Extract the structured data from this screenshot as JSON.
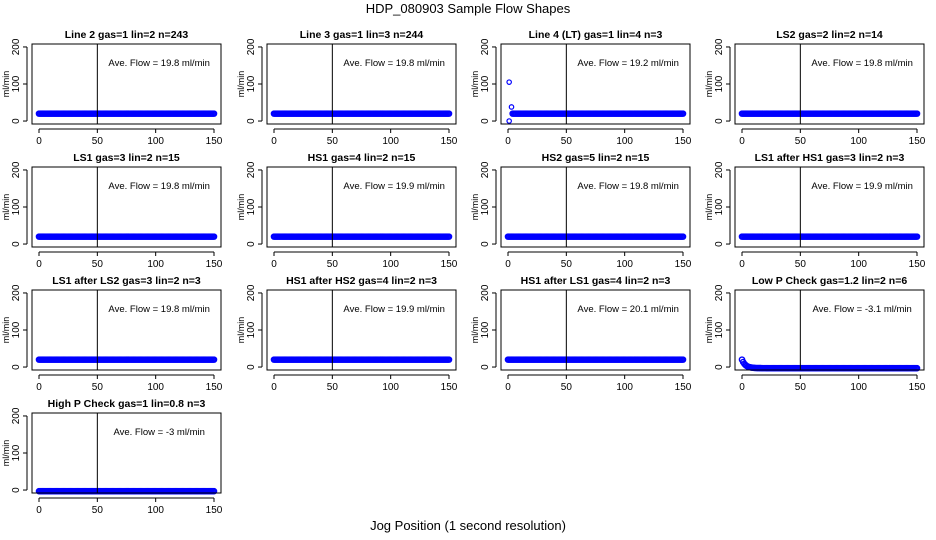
{
  "figure": {
    "title": "HDP_080903  Sample Flow Shapes",
    "xlabel": "Jog Position (1 second resolution)"
  },
  "chart_data": [
    {
      "type": "scatter",
      "title": "Line 2 gas=1 lin=2 n=243",
      "ylabel": "ml/min",
      "annotation": "Ave. Flow =  19.8  ml/min",
      "xlim": [
        0,
        150
      ],
      "ylim": [
        0,
        200
      ],
      "xticks": [
        0,
        50,
        100,
        150
      ],
      "yticks": [
        0,
        100,
        200
      ],
      "vline": 50,
      "series": [
        {
          "shape": "flat",
          "level": 20
        }
      ]
    },
    {
      "type": "scatter",
      "title": "Line 3 gas=1 lin=3 n=244",
      "ylabel": "ml/min",
      "annotation": "Ave. Flow =  19.8  ml/min",
      "xlim": [
        0,
        150
      ],
      "ylim": [
        0,
        200
      ],
      "xticks": [
        0,
        50,
        100,
        150
      ],
      "yticks": [
        0,
        100,
        200
      ],
      "vline": 50,
      "series": [
        {
          "shape": "flat",
          "level": 20
        }
      ]
    },
    {
      "type": "scatter",
      "title": "Line 4 (LT) gas=1 lin=4 n=3",
      "ylabel": "ml/min",
      "annotation": "Ave. Flow =  19.2  ml/min",
      "xlim": [
        0,
        150
      ],
      "ylim": [
        0,
        200
      ],
      "xticks": [
        0,
        50,
        100,
        150
      ],
      "yticks": [
        0,
        100,
        200
      ],
      "vline": 50,
      "series": [
        {
          "shape": "flat",
          "level": 20,
          "outliers": [
            [
              1,
              105
            ],
            [
              3,
              38
            ],
            [
              1,
              0
            ]
          ]
        }
      ]
    },
    {
      "type": "scatter",
      "title": "LS2 gas=2 lin=2 n=14",
      "ylabel": "ml/min",
      "annotation": "Ave. Flow =  19.8  ml/min",
      "xlim": [
        0,
        150
      ],
      "ylim": [
        0,
        200
      ],
      "xticks": [
        0,
        50,
        100,
        150
      ],
      "yticks": [
        0,
        100,
        200
      ],
      "vline": 50,
      "series": [
        {
          "shape": "flat",
          "level": 20
        }
      ]
    },
    {
      "type": "scatter",
      "title": "LS1 gas=3 lin=2 n=15",
      "ylabel": "ml/min",
      "annotation": "Ave. Flow =  19.8  ml/min",
      "xlim": [
        0,
        150
      ],
      "ylim": [
        0,
        200
      ],
      "xticks": [
        0,
        50,
        100,
        150
      ],
      "yticks": [
        0,
        100,
        200
      ],
      "vline": 50,
      "series": [
        {
          "shape": "flat",
          "level": 20
        }
      ]
    },
    {
      "type": "scatter",
      "title": "HS1 gas=4 lin=2 n=15",
      "ylabel": "ml/min",
      "annotation": "Ave. Flow =  19.9  ml/min",
      "xlim": [
        0,
        150
      ],
      "ylim": [
        0,
        200
      ],
      "xticks": [
        0,
        50,
        100,
        150
      ],
      "yticks": [
        0,
        100,
        200
      ],
      "vline": 50,
      "series": [
        {
          "shape": "flat",
          "level": 20
        }
      ]
    },
    {
      "type": "scatter",
      "title": "HS2 gas=5 lin=2 n=15",
      "ylabel": "ml/min",
      "annotation": "Ave. Flow =  19.8  ml/min",
      "xlim": [
        0,
        150
      ],
      "ylim": [
        0,
        200
      ],
      "xticks": [
        0,
        50,
        100,
        150
      ],
      "yticks": [
        0,
        100,
        200
      ],
      "vline": 50,
      "series": [
        {
          "shape": "flat",
          "level": 20
        }
      ]
    },
    {
      "type": "scatter",
      "title": "LS1 after HS1 gas=3 lin=2 n=3",
      "ylabel": "ml/min",
      "annotation": "Ave. Flow =  19.9  ml/min",
      "xlim": [
        0,
        150
      ],
      "ylim": [
        0,
        200
      ],
      "xticks": [
        0,
        50,
        100,
        150
      ],
      "yticks": [
        0,
        100,
        200
      ],
      "vline": 50,
      "series": [
        {
          "shape": "flat",
          "level": 20
        }
      ]
    },
    {
      "type": "scatter",
      "title": "LS1 after LS2 gas=3 lin=2 n=3",
      "ylabel": "ml/min",
      "annotation": "Ave. Flow =  19.8  ml/min",
      "xlim": [
        0,
        150
      ],
      "ylim": [
        0,
        200
      ],
      "xticks": [
        0,
        50,
        100,
        150
      ],
      "yticks": [
        0,
        100,
        200
      ],
      "vline": 50,
      "series": [
        {
          "shape": "flat",
          "level": 20
        }
      ]
    },
    {
      "type": "scatter",
      "title": "HS1 after HS2 gas=4 lin=2 n=3",
      "ylabel": "ml/min",
      "annotation": "Ave. Flow =  19.9  ml/min",
      "xlim": [
        0,
        150
      ],
      "ylim": [
        0,
        200
      ],
      "xticks": [
        0,
        50,
        100,
        150
      ],
      "yticks": [
        0,
        100,
        200
      ],
      "vline": 50,
      "series": [
        {
          "shape": "flat",
          "level": 20
        }
      ]
    },
    {
      "type": "scatter",
      "title": "HS1 after LS1 gas=4 lin=2 n=3",
      "ylabel": "ml/min",
      "annotation": "Ave. Flow =  20.1  ml/min",
      "xlim": [
        0,
        150
      ],
      "ylim": [
        0,
        200
      ],
      "xticks": [
        0,
        50,
        100,
        150
      ],
      "yticks": [
        0,
        100,
        200
      ],
      "vline": 50,
      "series": [
        {
          "shape": "flat",
          "level": 20
        }
      ]
    },
    {
      "type": "scatter",
      "title": "Low P Check gas=1.2 lin=2 n=6",
      "ylabel": "ml/min",
      "annotation": "Ave. Flow =  -3.1  ml/min",
      "xlim": [
        0,
        150
      ],
      "ylim": [
        0,
        200
      ],
      "xticks": [
        0,
        50,
        100,
        150
      ],
      "yticks": [
        0,
        100,
        200
      ],
      "vline": 50,
      "series": [
        {
          "shape": "decay",
          "level": -3,
          "start": 20,
          "decay_time": 3
        }
      ]
    },
    {
      "type": "scatter",
      "title": "High P Check gas=1 lin=0.8 n=3",
      "ylabel": "ml/min",
      "annotation": "Ave. Flow =  -3  ml/min",
      "xlim": [
        0,
        150
      ],
      "ylim": [
        0,
        200
      ],
      "xticks": [
        0,
        50,
        100,
        150
      ],
      "yticks": [
        0,
        100,
        200
      ],
      "vline": 50,
      "series": [
        {
          "shape": "flat",
          "level": -3
        }
      ]
    }
  ],
  "colors": {
    "points": "#0000ff",
    "axes": "#000000"
  }
}
